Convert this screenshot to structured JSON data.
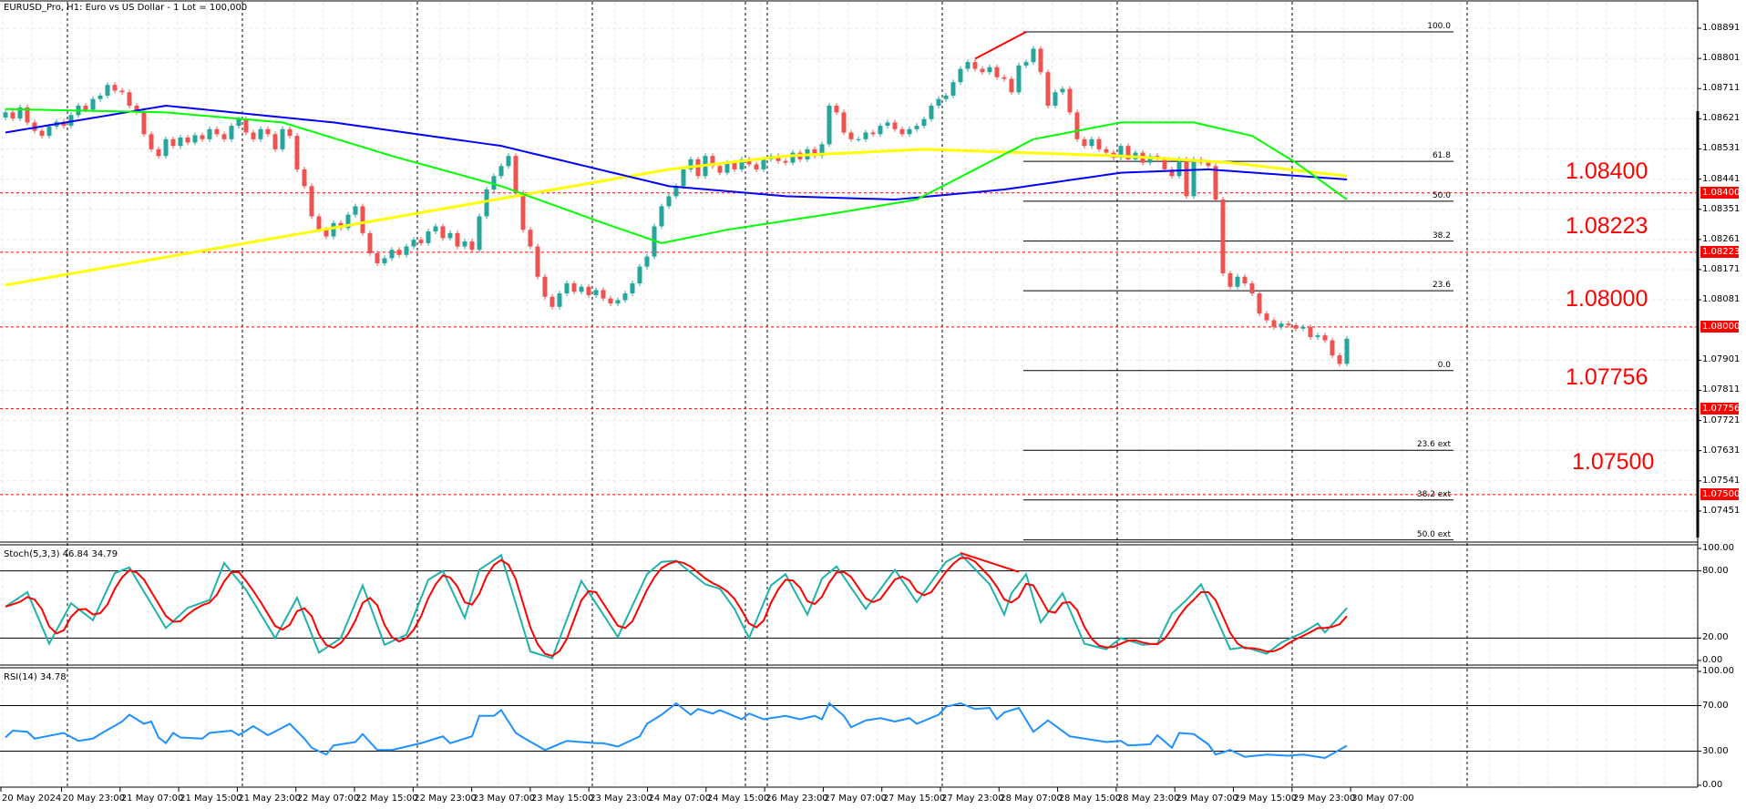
{
  "window": {
    "title": "EURUSD_Pro, H1:  Euro vs US Dollar - 1 Lot = 100,000"
  },
  "colors": {
    "bull": "#26a69a",
    "bear": "#ef5350",
    "level": "#ff0000",
    "stoch_main": "#20b2aa",
    "stoch_signal": "#ff0000",
    "rsi": "#1e90ff"
  },
  "chart_data": [
    {
      "type": "candlestick",
      "symbol": "EURUSD_Pro",
      "timeframe": "H1",
      "ylim": [
        1.0733,
        1.0897
      ],
      "grid": true,
      "price_ticks": [
        "1.08891",
        "1.08801",
        "1.08711",
        "1.08621",
        "1.08531",
        "1.08441",
        "1.08351",
        "1.08261",
        "1.08171",
        "1.08081",
        "1.07901",
        "1.07811",
        "1.07721",
        "1.07631",
        "1.07541",
        "1.07451"
      ],
      "time_labels": [
        "20 May 2024",
        "20 May 23:00",
        "21 May 07:00",
        "21 May 15:00",
        "21 May 23:00",
        "22 May 07:00",
        "22 May 15:00",
        "22 May 23:00",
        "23 May 07:00",
        "23 May 15:00",
        "23 May 23:00",
        "24 May 07:00",
        "24 May 15:00",
        "26 May 23:00",
        "27 May 07:00",
        "27 May 15:00",
        "27 May 23:00",
        "28 May 07:00",
        "28 May 15:00",
        "28 May 23:00",
        "29 May 07:00",
        "29 May 15:00",
        "29 May 23:00",
        "30 May 07:00"
      ],
      "candles": {
        "first_open": 1.08625,
        "close": [
          1.0864,
          1.08622,
          1.08655,
          1.0861,
          1.08585,
          1.0857,
          1.08598,
          1.08612,
          1.086,
          1.08632,
          1.0866,
          1.08648,
          1.0868,
          1.0869,
          1.08722,
          1.08705,
          1.087,
          1.0866,
          1.0864,
          1.08575,
          1.0853,
          1.0851,
          1.0856,
          1.0854,
          1.08565,
          1.0855,
          1.08572,
          1.0856,
          1.0859,
          1.08575,
          1.0856,
          1.086,
          1.0862,
          1.0858,
          1.0856,
          1.0859,
          1.08575,
          1.0853,
          1.0859,
          1.0857,
          1.0847,
          1.0842,
          1.0833,
          1.0829,
          1.0827,
          1.0831,
          1.08295,
          1.08335,
          1.0836,
          1.0828,
          1.0822,
          1.0819,
          1.08205,
          1.0823,
          1.08215,
          1.0824,
          1.0826,
          1.0825,
          1.08285,
          1.083,
          1.08265,
          1.0828,
          1.0824,
          1.08255,
          1.0823,
          1.0833,
          1.0841,
          1.0845,
          1.0848,
          1.0851,
          1.084,
          1.0829,
          1.0824,
          1.0815,
          1.0809,
          1.0806,
          1.081,
          1.0813,
          1.08105,
          1.0812,
          1.08095,
          1.0811,
          1.08085,
          1.0807,
          1.0808,
          1.081,
          1.0813,
          1.0818,
          1.0821,
          1.083,
          1.0836,
          1.0839,
          1.0842,
          1.0847,
          1.085,
          1.0845,
          1.0851,
          1.0848,
          1.0846,
          1.0849,
          1.0847,
          1.085,
          1.08485,
          1.0847,
          1.085,
          1.0851,
          1.08495,
          1.0849,
          1.0852,
          1.085,
          1.0853,
          1.0851,
          1.08545,
          1.0866,
          1.0864,
          1.0858,
          1.0856,
          1.0856,
          1.0858,
          1.08575,
          1.086,
          1.0861,
          1.0859,
          1.08575,
          1.0859,
          1.086,
          1.0862,
          1.0866,
          1.0868,
          1.0869,
          1.0873,
          1.0877,
          1.0879,
          1.0877,
          1.0876,
          1.08775,
          1.08745,
          1.0874,
          1.087,
          1.0878,
          1.0879,
          1.0883,
          1.0876,
          1.0866,
          1.087,
          1.0871,
          1.0864,
          1.0856,
          1.0854,
          1.0856,
          1.0853,
          1.0852,
          1.08505,
          1.0854,
          1.085,
          1.0852,
          1.0849,
          1.0851,
          1.085,
          1.0847,
          1.0845,
          1.085,
          1.0839,
          1.085,
          1.0849,
          1.0848,
          1.0838,
          1.0816,
          1.0812,
          1.0815,
          1.0813,
          1.081,
          1.0804,
          1.0802,
          1.08,
          1.0801,
          1.08005,
          1.07995,
          1.08,
          1.0797,
          1.07975,
          1.0796,
          1.07915,
          1.0789,
          1.07965
        ]
      },
      "moving_averages": [
        {
          "color": "#ffff00",
          "points": [
            [
              0,
              1.08125
            ],
            [
              91,
              1.0847
            ],
            [
              107,
              1.0851
            ],
            [
              126,
              1.0853
            ],
            [
              153,
              1.0851
            ],
            [
              168,
              1.0849
            ],
            [
              184,
              1.0845
            ]
          ]
        },
        {
          "color": "#0000ff",
          "points": [
            [
              0,
              1.0858
            ],
            [
              22,
              1.0866
            ],
            [
              45,
              1.0861
            ],
            [
              68,
              1.0854
            ],
            [
              91,
              1.0842
            ],
            [
              107,
              1.0839
            ],
            [
              122,
              1.0838
            ],
            [
              137,
              1.0841
            ],
            [
              153,
              1.0846
            ],
            [
              165,
              1.0847
            ],
            [
              184,
              1.0844
            ]
          ]
        },
        {
          "color": "#00ff00",
          "points": [
            [
              0,
              1.0865
            ],
            [
              22,
              1.0864
            ],
            [
              38,
              1.0861
            ],
            [
              53,
              1.0851
            ],
            [
              68,
              1.0842
            ],
            [
              82,
              1.0831
            ],
            [
              90,
              1.0825
            ],
            [
              99,
              1.0829
            ],
            [
              114,
              1.0834
            ],
            [
              125,
              1.0838
            ],
            [
              133,
              1.0847
            ],
            [
              141,
              1.0856
            ],
            [
              153,
              1.0861
            ],
            [
              163,
              1.0861
            ],
            [
              171,
              1.0857
            ],
            [
              177,
              1.0849
            ],
            [
              184,
              1.0838
            ]
          ]
        }
      ],
      "horizontal_levels": [
        {
          "price": 1.084,
          "label": "1.08400"
        },
        {
          "price": 1.08223,
          "label": "1.08223"
        },
        {
          "price": 1.08,
          "label": "1.08000"
        },
        {
          "price": 1.07756,
          "label": "1.07756"
        },
        {
          "price": 1.075,
          "label": "1.07500"
        }
      ],
      "fibonacci": {
        "anchor_bar": 140,
        "levels": [
          {
            "label": "100.0",
            "price": 1.0888
          },
          {
            "label": "61.8",
            "price": 1.08494
          },
          {
            "label": "50.0",
            "price": 1.08375
          },
          {
            "label": "38.2",
            "price": 1.08256
          },
          {
            "label": "23.6",
            "price": 1.08108
          },
          {
            "label": "0.0",
            "price": 1.0787
          },
          {
            "label": "23.6 ext",
            "price": 1.07632
          },
          {
            "label": "38.2 ext",
            "price": 1.07484
          },
          {
            "label": "50.0 ext",
            "price": 1.07365
          }
        ]
      },
      "trendline": {
        "color": "#ff0000",
        "points": [
          [
            133,
            1.088
          ],
          [
            140,
            1.0888
          ]
        ]
      }
    },
    {
      "type": "line",
      "title": "Stoch(5,3,3) 46.84 34.79",
      "ylim": [
        0,
        100
      ],
      "levels": [
        20,
        80
      ],
      "ticks": [
        "100.00",
        "80.00",
        "20.00",
        "0.00"
      ],
      "main_points": [
        [
          0,
          48
        ],
        [
          3,
          61
        ],
        [
          6,
          15
        ],
        [
          9,
          51
        ],
        [
          12,
          36
        ],
        [
          15,
          78
        ],
        [
          17,
          83
        ],
        [
          22,
          29
        ],
        [
          25,
          47
        ],
        [
          28,
          54
        ],
        [
          30,
          87
        ],
        [
          33,
          63
        ],
        [
          37,
          20
        ],
        [
          40,
          56
        ],
        [
          43,
          7
        ],
        [
          46,
          20
        ],
        [
          49,
          67
        ],
        [
          52,
          14
        ],
        [
          55,
          23
        ],
        [
          58,
          72
        ],
        [
          60,
          80
        ],
        [
          63,
          38
        ],
        [
          65,
          81
        ],
        [
          68,
          94
        ],
        [
          72,
          8
        ],
        [
          75,
          2
        ],
        [
          79,
          71
        ],
        [
          84,
          21
        ],
        [
          88,
          77
        ],
        [
          90,
          88
        ],
        [
          92,
          89
        ],
        [
          96,
          68
        ],
        [
          98,
          64
        ],
        [
          100,
          46
        ],
        [
          102,
          20
        ],
        [
          105,
          67
        ],
        [
          107,
          77
        ],
        [
          110,
          41
        ],
        [
          112,
          73
        ],
        [
          114,
          84
        ],
        [
          118,
          46
        ],
        [
          122,
          81
        ],
        [
          125,
          52
        ],
        [
          129,
          88
        ],
        [
          131,
          95
        ],
        [
          135,
          68
        ],
        [
          137,
          41
        ],
        [
          138,
          60
        ],
        [
          140,
          77
        ],
        [
          142,
          34
        ],
        [
          145,
          60
        ],
        [
          148,
          15
        ],
        [
          151,
          10
        ],
        [
          153,
          20
        ],
        [
          156,
          14
        ],
        [
          158,
          15
        ],
        [
          160,
          42
        ],
        [
          162,
          54
        ],
        [
          164,
          68
        ],
        [
          165,
          54
        ],
        [
          168,
          10
        ],
        [
          170,
          12
        ],
        [
          173,
          6
        ],
        [
          175,
          16
        ],
        [
          178,
          25
        ],
        [
          180,
          33
        ],
        [
          181,
          25
        ],
        [
          184,
          46.84
        ]
      ],
      "signal_period": 3,
      "trendline": {
        "color": "#ff0000",
        "points": [
          [
            131,
            96
          ],
          [
            139,
            79
          ]
        ]
      }
    },
    {
      "type": "line",
      "title": "RSI(14) 34.78",
      "ylim": [
        0,
        100
      ],
      "levels": [
        30,
        70
      ],
      "ticks": [
        "100.00",
        "70.00",
        "30.00",
        "0.00"
      ],
      "points": [
        [
          0,
          42
        ],
        [
          1,
          48
        ],
        [
          3,
          47
        ],
        [
          4,
          41
        ],
        [
          8,
          46
        ],
        [
          10,
          39
        ],
        [
          12,
          41
        ],
        [
          13,
          45
        ],
        [
          16,
          56
        ],
        [
          17,
          62
        ],
        [
          19,
          54
        ],
        [
          20,
          56
        ],
        [
          21,
          42
        ],
        [
          22,
          37
        ],
        [
          23,
          46
        ],
        [
          24,
          42
        ],
        [
          27,
          41
        ],
        [
          28,
          46
        ],
        [
          31,
          48
        ],
        [
          32,
          44
        ],
        [
          34,
          52
        ],
        [
          36,
          44
        ],
        [
          39,
          54
        ],
        [
          41,
          41
        ],
        [
          42,
          33
        ],
        [
          44,
          27
        ],
        [
          45,
          35
        ],
        [
          48,
          38
        ],
        [
          49,
          45
        ],
        [
          51,
          31
        ],
        [
          53,
          31
        ],
        [
          57,
          37
        ],
        [
          60,
          43
        ],
        [
          61,
          37
        ],
        [
          64,
          43
        ],
        [
          65,
          61
        ],
        [
          67,
          61
        ],
        [
          68,
          66
        ],
        [
          70,
          46
        ],
        [
          71,
          42
        ],
        [
          74,
          31
        ],
        [
          77,
          39
        ],
        [
          81,
          37
        ],
        [
          82,
          37
        ],
        [
          84,
          34
        ],
        [
          87,
          43
        ],
        [
          88,
          54
        ],
        [
          90,
          62
        ],
        [
          92,
          72
        ],
        [
          94,
          62
        ],
        [
          95,
          67
        ],
        [
          97,
          63
        ],
        [
          98,
          66
        ],
        [
          101,
          58
        ],
        [
          102,
          63
        ],
        [
          104,
          58
        ],
        [
          107,
          61
        ],
        [
          109,
          58
        ],
        [
          111,
          61
        ],
        [
          112,
          58
        ],
        [
          113,
          72
        ],
        [
          115,
          61
        ],
        [
          116,
          51
        ],
        [
          118,
          57
        ],
        [
          120,
          59
        ],
        [
          122,
          56
        ],
        [
          124,
          59
        ],
        [
          125,
          54
        ],
        [
          128,
          62
        ],
        [
          129,
          69
        ],
        [
          131,
          72
        ],
        [
          133,
          67
        ],
        [
          135,
          68
        ],
        [
          136,
          58
        ],
        [
          137,
          64
        ],
        [
          139,
          68
        ],
        [
          141,
          47
        ],
        [
          143,
          57
        ],
        [
          146,
          43
        ],
        [
          148,
          41
        ],
        [
          151,
          38
        ],
        [
          153,
          39
        ],
        [
          154,
          35
        ],
        [
          157,
          36
        ],
        [
          158,
          44
        ],
        [
          160,
          33
        ],
        [
          161,
          46
        ],
        [
          163,
          45
        ],
        [
          165,
          36
        ],
        [
          166,
          27
        ],
        [
          168,
          31
        ],
        [
          170,
          25
        ],
        [
          173,
          27
        ],
        [
          176,
          26
        ],
        [
          178,
          27
        ],
        [
          181,
          24
        ],
        [
          184,
          34.78
        ]
      ]
    }
  ]
}
